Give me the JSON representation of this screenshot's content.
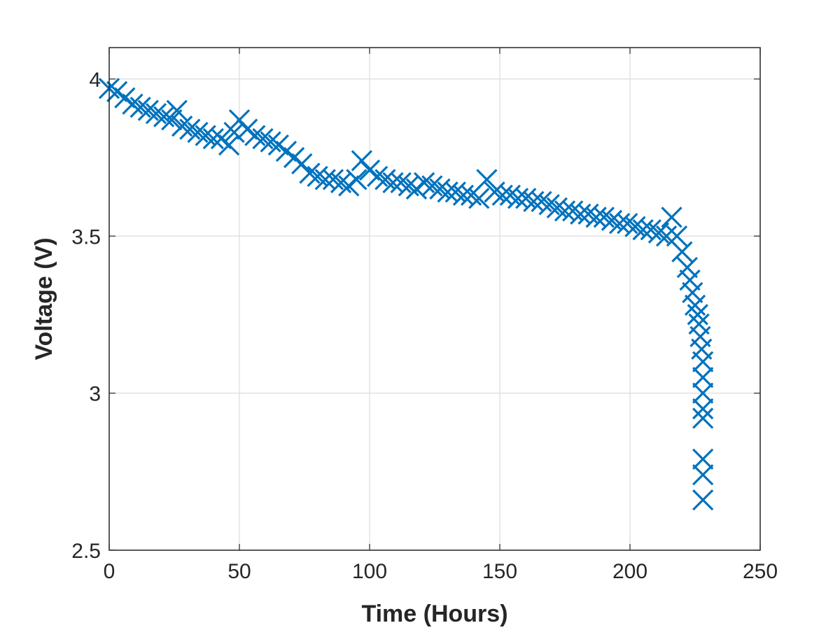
{
  "chart_data": {
    "type": "scatter",
    "title": "",
    "xlabel": "Time (Hours)",
    "ylabel": "Voltage (V)",
    "xlim": [
      0,
      250
    ],
    "ylim": [
      2.5,
      4.1
    ],
    "xticks": [
      0,
      50,
      100,
      150,
      200,
      250
    ],
    "yticks": [
      2.5,
      3,
      3.5,
      4
    ],
    "xtick_labels": [
      "0",
      "50",
      "100",
      "150",
      "200",
      "250"
    ],
    "ytick_labels": [
      "2.5",
      "3",
      "3.5",
      "4"
    ],
    "grid": true,
    "marker": "x",
    "series": [
      {
        "color": "#0072bd",
        "x": [
          0,
          3,
          6,
          9,
          12,
          15,
          18,
          21,
          24,
          26,
          28,
          31,
          34,
          37,
          40,
          43,
          46,
          48,
          50,
          53,
          56,
          59,
          62,
          65,
          68,
          71,
          74,
          77,
          80,
          83,
          86,
          89,
          92,
          95,
          97,
          100,
          103,
          106,
          109,
          112,
          115,
          118,
          121,
          124,
          127,
          130,
          133,
          136,
          139,
          142,
          145,
          148,
          151,
          154,
          157,
          160,
          163,
          166,
          169,
          172,
          175,
          178,
          181,
          184,
          187,
          190,
          193,
          196,
          199,
          202,
          205,
          208,
          211,
          214,
          216,
          218,
          220,
          222,
          223,
          224,
          225,
          226,
          226.5,
          227,
          227.5,
          228,
          228,
          228,
          228,
          228,
          228,
          228,
          228
        ],
        "y": [
          3.97,
          3.96,
          3.94,
          3.92,
          3.91,
          3.9,
          3.89,
          3.88,
          3.87,
          3.9,
          3.85,
          3.84,
          3.83,
          3.82,
          3.81,
          3.81,
          3.79,
          3.83,
          3.87,
          3.84,
          3.82,
          3.81,
          3.8,
          3.79,
          3.77,
          3.75,
          3.73,
          3.7,
          3.69,
          3.68,
          3.68,
          3.67,
          3.66,
          3.68,
          3.74,
          3.71,
          3.69,
          3.68,
          3.67,
          3.67,
          3.66,
          3.65,
          3.67,
          3.66,
          3.65,
          3.64,
          3.64,
          3.63,
          3.63,
          3.62,
          3.68,
          3.64,
          3.63,
          3.63,
          3.62,
          3.62,
          3.61,
          3.61,
          3.6,
          3.59,
          3.58,
          3.58,
          3.57,
          3.57,
          3.56,
          3.56,
          3.55,
          3.54,
          3.54,
          3.53,
          3.52,
          3.52,
          3.51,
          3.5,
          3.56,
          3.5,
          3.45,
          3.4,
          3.36,
          3.32,
          3.28,
          3.25,
          3.22,
          3.18,
          3.14,
          3.1,
          3.05,
          3.0,
          2.95,
          2.92,
          2.79,
          2.74,
          2.66
        ]
      }
    ]
  }
}
